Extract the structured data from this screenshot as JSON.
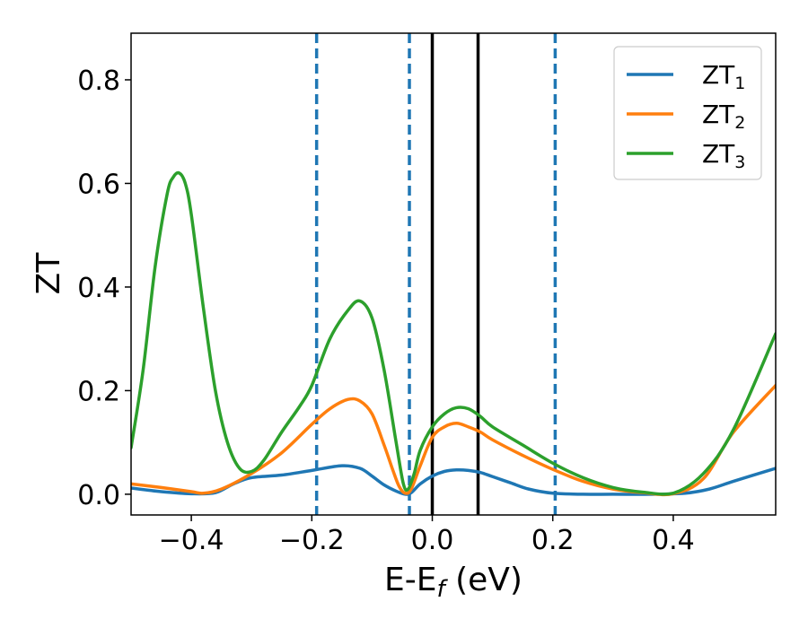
{
  "chart_data": {
    "type": "line",
    "title": "",
    "xlabel": {
      "base": "E-E",
      "sub": "f",
      "unit": " (eV)"
    },
    "ylabel": "ZT",
    "xlim": [
      -0.5,
      0.57
    ],
    "ylim": [
      -0.04,
      0.89
    ],
    "xticks": [
      -0.4,
      -0.2,
      0.0,
      0.2,
      0.4
    ],
    "xtick_labels": [
      "−0.4",
      "−0.2",
      "0.0",
      "0.2",
      "0.4"
    ],
    "yticks": [
      0.0,
      0.2,
      0.4,
      0.6,
      0.8
    ],
    "ytick_labels": [
      "0.0",
      "0.2",
      "0.4",
      "0.6",
      "0.8"
    ],
    "grid": false,
    "legend_position": "top-right",
    "dashed_vlines": [
      -0.192,
      -0.038,
      0.204
    ],
    "dashed_vline_color": "#1f77b4",
    "solid_vlines": [
      0.0,
      0.076
    ],
    "solid_vline_color": "#000000",
    "series": [
      {
        "name_base": "ZT",
        "name_sub": "1",
        "color": "#1f77b4",
        "x": [
          -0.5,
          -0.45,
          -0.4,
          -0.36,
          -0.33,
          -0.3,
          -0.25,
          -0.2,
          -0.15,
          -0.12,
          -0.1,
          -0.08,
          -0.06,
          -0.045,
          -0.035,
          -0.02,
          0.0,
          0.02,
          0.04,
          0.06,
          0.08,
          0.1,
          0.13,
          0.16,
          0.2,
          0.25,
          0.3,
          0.37,
          0.42,
          0.46,
          0.5,
          0.57
        ],
        "values": [
          0.012,
          0.005,
          0.001,
          0.003,
          0.02,
          0.032,
          0.037,
          0.046,
          0.055,
          0.05,
          0.035,
          0.018,
          0.006,
          0.0,
          0.003,
          0.02,
          0.035,
          0.044,
          0.047,
          0.046,
          0.042,
          0.034,
          0.022,
          0.01,
          0.002,
          0.0,
          0.0,
          0.0,
          0.002,
          0.01,
          0.025,
          0.05
        ]
      },
      {
        "name_base": "ZT",
        "name_sub": "2",
        "color": "#ff7f0e",
        "x": [
          -0.5,
          -0.45,
          -0.4,
          -0.38,
          -0.35,
          -0.3,
          -0.25,
          -0.2,
          -0.17,
          -0.14,
          -0.12,
          -0.1,
          -0.08,
          -0.065,
          -0.055,
          -0.045,
          -0.035,
          -0.02,
          0.0,
          0.02,
          0.04,
          0.06,
          0.08,
          0.1,
          0.15,
          0.2,
          0.25,
          0.3,
          0.35,
          0.4,
          0.45,
          0.5,
          0.57
        ],
        "values": [
          0.02,
          0.013,
          0.005,
          0.002,
          0.01,
          0.04,
          0.08,
          0.135,
          0.165,
          0.183,
          0.18,
          0.155,
          0.095,
          0.045,
          0.015,
          0.002,
          0.01,
          0.055,
          0.11,
          0.13,
          0.137,
          0.13,
          0.12,
          0.105,
          0.075,
          0.048,
          0.025,
          0.01,
          0.003,
          0.001,
          0.03,
          0.12,
          0.21
        ]
      },
      {
        "name_base": "ZT",
        "name_sub": "3",
        "color": "#2ca02c",
        "x": [
          -0.5,
          -0.48,
          -0.46,
          -0.44,
          -0.43,
          -0.42,
          -0.41,
          -0.4,
          -0.38,
          -0.36,
          -0.34,
          -0.32,
          -0.3,
          -0.28,
          -0.25,
          -0.22,
          -0.2,
          -0.17,
          -0.14,
          -0.12,
          -0.1,
          -0.08,
          -0.06,
          -0.048,
          -0.04,
          -0.03,
          -0.02,
          0.0,
          0.02,
          0.04,
          0.06,
          0.08,
          0.1,
          0.15,
          0.2,
          0.25,
          0.3,
          0.35,
          0.4,
          0.45,
          0.5,
          0.57
        ],
        "values": [
          0.09,
          0.24,
          0.44,
          0.58,
          0.612,
          0.62,
          0.6,
          0.54,
          0.36,
          0.2,
          0.1,
          0.05,
          0.044,
          0.065,
          0.12,
          0.17,
          0.21,
          0.3,
          0.355,
          0.373,
          0.34,
          0.24,
          0.1,
          0.02,
          0.01,
          0.04,
          0.085,
          0.13,
          0.155,
          0.167,
          0.165,
          0.15,
          0.13,
          0.095,
          0.06,
          0.032,
          0.013,
          0.004,
          0.002,
          0.04,
          0.125,
          0.31
        ]
      }
    ]
  }
}
